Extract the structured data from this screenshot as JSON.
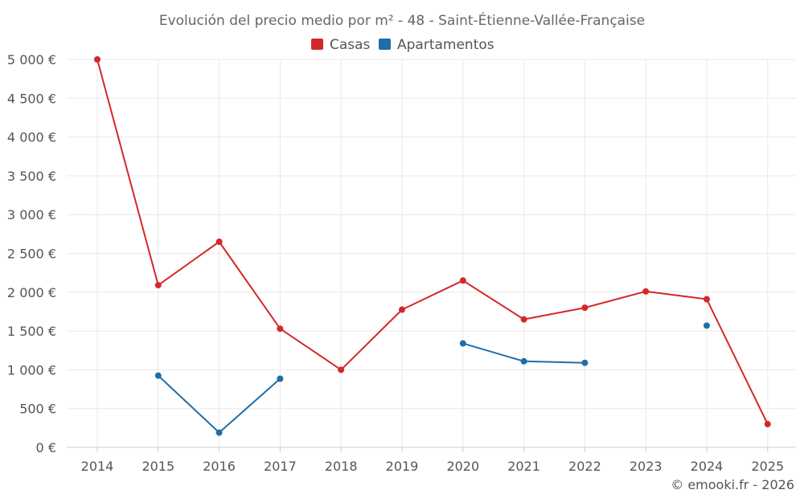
{
  "chart_data": {
    "type": "line",
    "title": "Evolución del precio medio por m² - 48 - Saint-Étienne-Vallée-Française",
    "categories": [
      "2014",
      "2015",
      "2016",
      "2017",
      "2018",
      "2019",
      "2020",
      "2021",
      "2022",
      "2023",
      "2024",
      "2025"
    ],
    "series": [
      {
        "name": "Casas",
        "color": "#d62728",
        "values": [
          5000,
          2090,
          2650,
          1530,
          1000,
          1775,
          2150,
          1650,
          1800,
          2010,
          1910,
          300
        ]
      },
      {
        "name": "Apartamentos",
        "color": "#1f6ea8",
        "values": [
          null,
          925,
          190,
          885,
          null,
          null,
          1340,
          1110,
          1090,
          null,
          1570,
          null
        ]
      }
    ],
    "ylim": [
      0,
      5000
    ],
    "yticks": [
      0,
      500,
      1000,
      1500,
      2000,
      2500,
      3000,
      3500,
      4000,
      4500,
      5000
    ],
    "ytick_labels": [
      "0 €",
      "500 €",
      "1 000 €",
      "1 500 €",
      "2 000 €",
      "2 500 €",
      "3 000 €",
      "3 500 €",
      "4 000 €",
      "4 500 €",
      "5 000 €"
    ],
    "xlabel": "",
    "ylabel": "",
    "grid": true,
    "legend_position": "top-center"
  },
  "credit": "© emooki.fr - 2026"
}
